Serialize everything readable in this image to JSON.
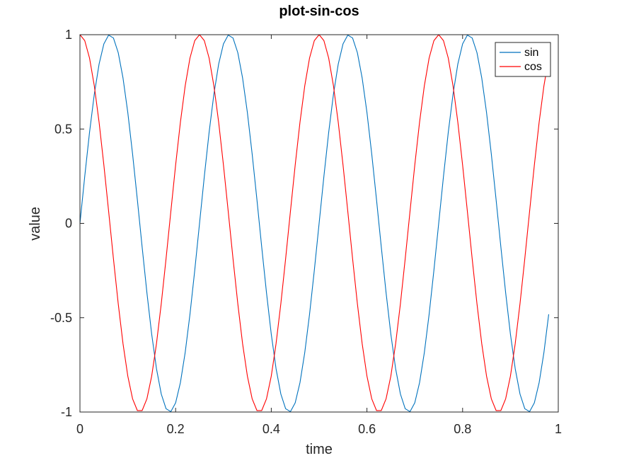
{
  "chart_data": {
    "type": "line",
    "title": "plot-sin-cos",
    "xlabel": "time",
    "ylabel": "value",
    "xlim": [
      0,
      1
    ],
    "ylim": [
      -1,
      1
    ],
    "grid": false,
    "legend_position": "top-right",
    "xticks": [
      0,
      0.2,
      0.4,
      0.6,
      0.8,
      1
    ],
    "xtick_labels": [
      "0",
      "0.2",
      "0.4",
      "0.6",
      "0.8",
      "1"
    ],
    "yticks": [
      -1,
      -0.5,
      0,
      0.5,
      1
    ],
    "ytick_labels": [
      "-1",
      "-0.5",
      "0",
      "0.5",
      "1"
    ],
    "x": [
      0,
      0.01,
      0.02,
      0.03,
      0.04,
      0.05,
      0.06,
      0.07,
      0.08,
      0.09,
      0.1,
      0.11,
      0.12,
      0.13,
      0.14,
      0.15,
      0.16,
      0.17,
      0.18,
      0.19,
      0.2,
      0.21,
      0.22,
      0.23,
      0.24,
      0.25,
      0.26,
      0.27,
      0.28,
      0.29,
      0.3,
      0.31,
      0.32,
      0.33,
      0.34,
      0.35,
      0.36,
      0.37,
      0.38,
      0.39,
      0.4,
      0.41,
      0.42,
      0.43,
      0.44,
      0.45,
      0.46,
      0.47,
      0.48,
      0.49,
      0.5,
      0.51,
      0.52,
      0.53,
      0.54,
      0.55,
      0.56,
      0.57,
      0.58,
      0.59,
      0.6,
      0.61,
      0.62,
      0.63,
      0.64,
      0.65,
      0.66,
      0.67,
      0.68,
      0.69,
      0.7,
      0.71,
      0.72,
      0.73,
      0.74,
      0.75,
      0.76,
      0.77,
      0.78,
      0.79,
      0.8,
      0.81,
      0.82,
      0.83,
      0.84,
      0.85,
      0.86,
      0.87,
      0.88,
      0.89,
      0.9,
      0.91,
      0.92,
      0.93,
      0.94,
      0.95,
      0.96,
      0.97,
      0.98
    ],
    "series": [
      {
        "name": "sin",
        "color": "#0072bd",
        "values": [
          0,
          0.2487,
          0.4818,
          0.6845,
          0.8443,
          0.9511,
          0.998,
          0.9823,
          0.9048,
          0.7705,
          0.5878,
          0.3681,
          0.1253,
          -0.1253,
          -0.3681,
          -0.5878,
          -0.7705,
          -0.9048,
          -0.9823,
          -0.998,
          -0.9511,
          -0.8443,
          -0.6845,
          -0.4818,
          -0.2487,
          0,
          0.2487,
          0.4818,
          0.6845,
          0.8443,
          0.9511,
          0.998,
          0.9823,
          0.9048,
          0.7705,
          0.5878,
          0.3681,
          0.1253,
          -0.1253,
          -0.3681,
          -0.5878,
          -0.7705,
          -0.9048,
          -0.9823,
          -0.998,
          -0.9511,
          -0.8443,
          -0.6845,
          -0.4818,
          -0.2487,
          0,
          0.2487,
          0.4818,
          0.6845,
          0.8443,
          0.9511,
          0.998,
          0.9823,
          0.9048,
          0.7705,
          0.5878,
          0.3681,
          0.1253,
          -0.1253,
          -0.3681,
          -0.5878,
          -0.7705,
          -0.9048,
          -0.9823,
          -0.998,
          -0.9511,
          -0.8443,
          -0.6845,
          -0.4818,
          -0.2487,
          0,
          0.2487,
          0.4818,
          0.6845,
          0.8443,
          0.9511,
          0.998,
          0.9823,
          0.9048,
          0.7705,
          0.5878,
          0.3681,
          0.1253,
          -0.1253,
          -0.3681,
          -0.5878,
          -0.7705,
          -0.9048,
          -0.9823,
          -0.998,
          -0.9511,
          -0.8443,
          -0.6845,
          -0.4818
        ]
      },
      {
        "name": "cos",
        "color": "#ff0000",
        "values": [
          1,
          0.9686,
          0.8763,
          0.729,
          0.5358,
          0.309,
          0.0628,
          -0.1874,
          -0.4258,
          -0.6374,
          -0.809,
          -0.9298,
          -0.9921,
          -0.9921,
          -0.9298,
          -0.809,
          -0.6374,
          -0.4258,
          -0.1874,
          0.0628,
          0.309,
          0.5358,
          0.729,
          0.8763,
          0.9686,
          1,
          0.9686,
          0.8763,
          0.729,
          0.5358,
          0.309,
          0.0628,
          -0.1874,
          -0.4258,
          -0.6374,
          -0.809,
          -0.9298,
          -0.9921,
          -0.9921,
          -0.9298,
          -0.809,
          -0.6374,
          -0.4258,
          -0.1874,
          0.0628,
          0.309,
          0.5358,
          0.729,
          0.8763,
          0.9686,
          1,
          0.9686,
          0.8763,
          0.729,
          0.5358,
          0.309,
          0.0628,
          -0.1874,
          -0.4258,
          -0.6374,
          -0.809,
          -0.9298,
          -0.9921,
          -0.9921,
          -0.9298,
          -0.809,
          -0.6374,
          -0.4258,
          -0.1874,
          0.0628,
          0.309,
          0.5358,
          0.729,
          0.8763,
          0.9686,
          1,
          0.9686,
          0.8763,
          0.729,
          0.5358,
          0.309,
          0.0628,
          -0.1874,
          -0.4258,
          -0.6374,
          -0.809,
          -0.9298,
          -0.9921,
          -0.9921,
          -0.9298,
          -0.809,
          -0.6374,
          -0.4258,
          -0.1874,
          0.0628,
          0.309,
          0.5358,
          0.729,
          0.8763
        ]
      }
    ]
  }
}
